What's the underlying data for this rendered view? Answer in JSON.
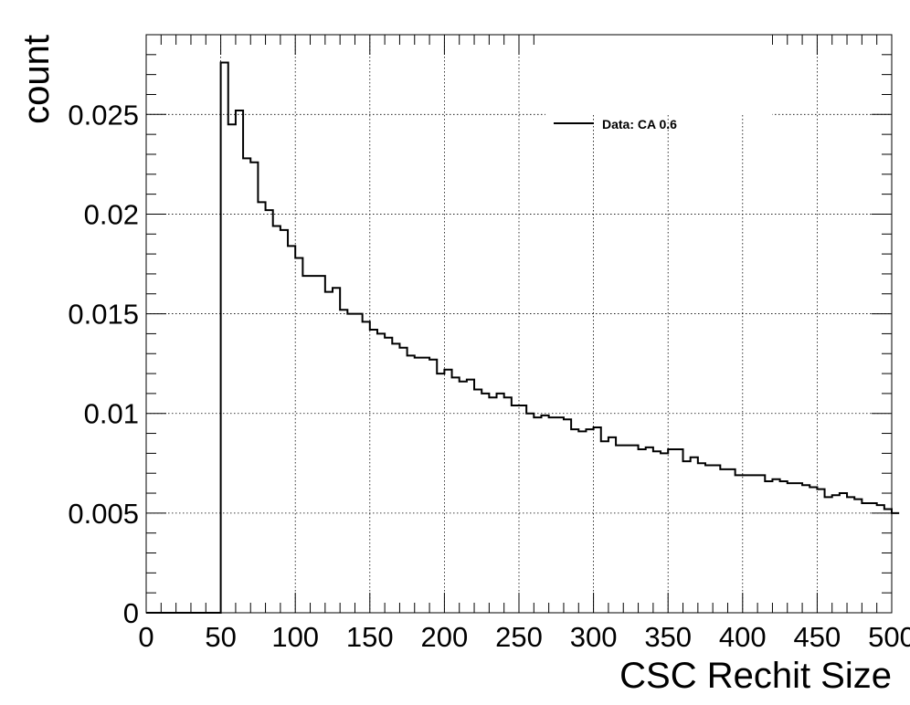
{
  "chart_data": {
    "type": "histogram",
    "xlabel": "CSC Rechit Size",
    "ylabel": "count",
    "xlim": [
      0,
      500
    ],
    "ylim": [
      0,
      0.029
    ],
    "grid": true,
    "legend_position": "top-right",
    "xticks": [
      0,
      50,
      100,
      150,
      200,
      250,
      300,
      350,
      400,
      450,
      500
    ],
    "yticks": [
      0,
      0.005,
      0.01,
      0.015,
      0.02,
      0.025
    ],
    "ytick_labels": [
      "0",
      "0.005",
      "0.01",
      "0.015",
      "0.02",
      "0.025"
    ],
    "series": [
      {
        "name": "Data: CA 0.6",
        "color": "#000000",
        "bin_width": 5,
        "bin_edges_start": 0,
        "values": [
          0,
          0,
          0,
          0,
          0,
          0,
          0,
          0,
          0,
          0,
          0.0276,
          0.0245,
          0.0252,
          0.0228,
          0.0226,
          0.0206,
          0.0202,
          0.0194,
          0.0192,
          0.0184,
          0.0178,
          0.0169,
          0.0169,
          0.0169,
          0.0161,
          0.0163,
          0.0152,
          0.015,
          0.015,
          0.0146,
          0.0142,
          0.014,
          0.0138,
          0.0135,
          0.0133,
          0.0129,
          0.0128,
          0.0128,
          0.0127,
          0.012,
          0.0122,
          0.0118,
          0.0116,
          0.0117,
          0.0112,
          0.011,
          0.0108,
          0.011,
          0.0108,
          0.0104,
          0.0104,
          0.01,
          0.0098,
          0.0099,
          0.0098,
          0.0098,
          0.0097,
          0.0092,
          0.0091,
          0.0092,
          0.0093,
          0.0086,
          0.0088,
          0.0084,
          0.0084,
          0.0084,
          0.0082,
          0.0083,
          0.0081,
          0.008,
          0.0082,
          0.0082,
          0.0076,
          0.0078,
          0.0075,
          0.0074,
          0.0074,
          0.0072,
          0.0072,
          0.0069,
          0.0069,
          0.0069,
          0.0069,
          0.0066,
          0.0067,
          0.0066,
          0.0065,
          0.0065,
          0.0064,
          0.0063,
          0.0062,
          0.0058,
          0.0059,
          0.006,
          0.0058,
          0.0057,
          0.0055,
          0.0055,
          0.0054,
          0.0052,
          0.005
        ]
      }
    ]
  }
}
